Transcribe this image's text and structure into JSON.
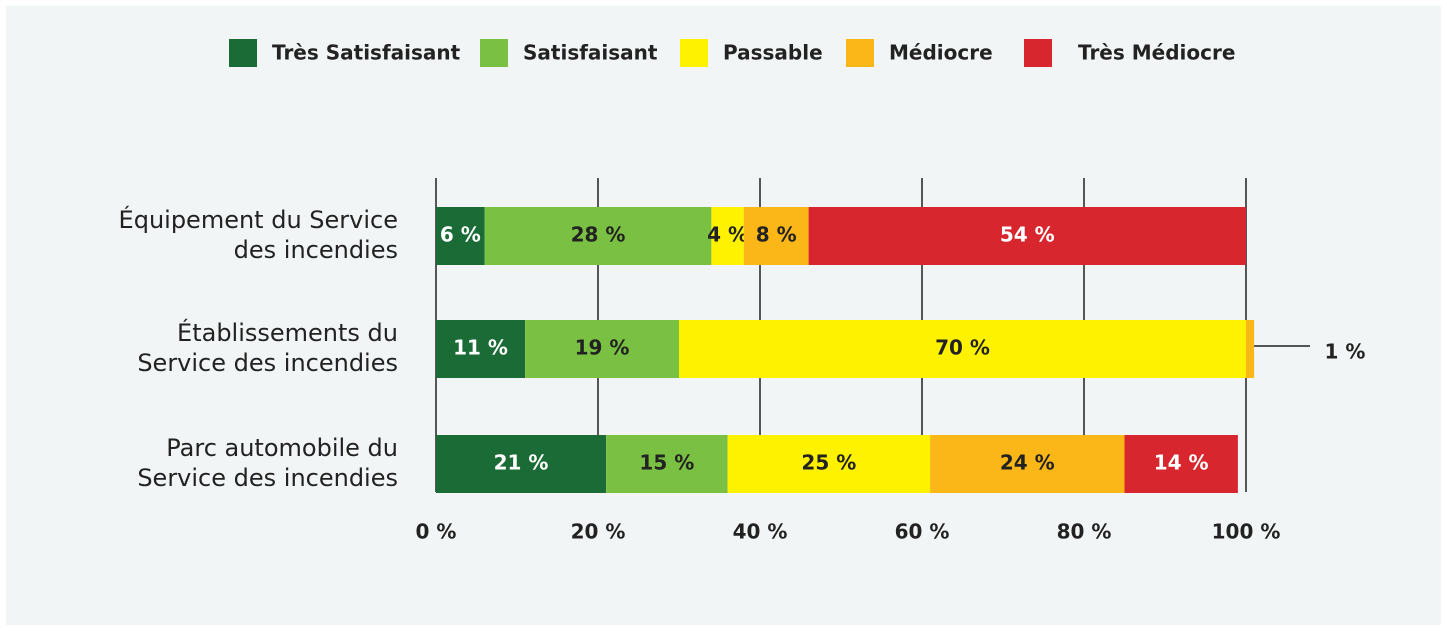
{
  "chart_data": {
    "type": "stacked-bar-horizontal",
    "categories": [
      "Équipement du Service\ndes incendies",
      "Établissements du\nService des incendies",
      "Parc automobile du\nService des incendies"
    ],
    "series": [
      {
        "name": "Très Satisfaisant",
        "color": "#1a6b35",
        "values": [
          6,
          11,
          21
        ],
        "value_labels": [
          "6 %",
          "11 %",
          "21 %"
        ]
      },
      {
        "name": "Satisfaisant",
        "color": "#7ac143",
        "values": [
          28,
          19,
          15
        ],
        "value_labels": [
          "28 %",
          "19 %",
          "15 %"
        ]
      },
      {
        "name": "Passable",
        "color": "#fff200",
        "values": [
          4,
          70,
          25
        ],
        "value_labels": [
          "4 %",
          "70 %",
          "25 %"
        ]
      },
      {
        "name": "Médiocre",
        "color": "#fbb617",
        "values": [
          8,
          1,
          24
        ],
        "value_labels": [
          "8 %",
          "1 %",
          "24 %"
        ]
      },
      {
        "name": "Très Médiocre",
        "color": "#d7262e",
        "values": [
          54,
          null,
          14
        ],
        "value_labels": [
          "54 %",
          null,
          "14 %"
        ]
      }
    ],
    "xlim": [
      0,
      100
    ],
    "xticks": [
      {
        "value": 0,
        "label": "0 %"
      },
      {
        "value": 20,
        "label": "20 %"
      },
      {
        "value": 40,
        "label": "40 %"
      },
      {
        "value": 60,
        "label": "60 %"
      },
      {
        "value": 80,
        "label": "80 %"
      },
      {
        "value": 100,
        "label": "100 %"
      }
    ],
    "grid": true,
    "legend": "top"
  }
}
